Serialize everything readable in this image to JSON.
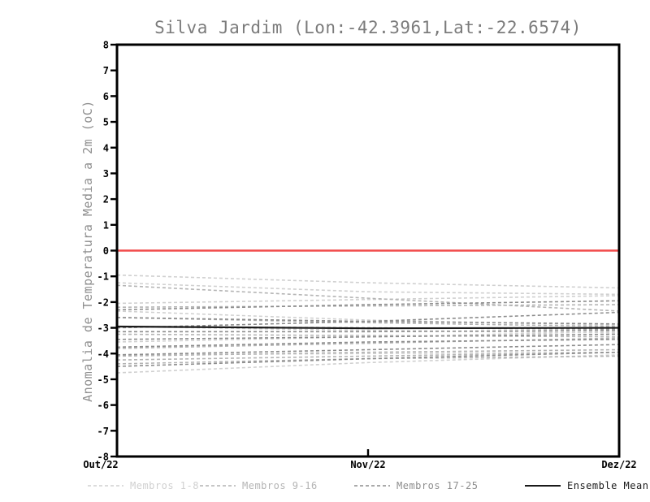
{
  "chart_data": {
    "type": "line",
    "title": "Silva Jardim (Lon:-42.3961,Lat:-22.6574)",
    "xlabel": "",
    "ylabel": "Anomalia de Temperatura Media a 2m (oC)",
    "x_categories": [
      "Out/22",
      "Nov/22",
      "Dez/22"
    ],
    "ylim": [
      -8,
      8
    ],
    "y_tick_step": 1,
    "grid": false,
    "legend_position": "bottom",
    "colors": {
      "axis": "#000000",
      "title": "#7b7b7b",
      "ylabel_text": "#8f8f8f",
      "zero_line": "#f24b4b"
    },
    "zero_line": {
      "value": 0,
      "color": "#f24b4b"
    },
    "groups": [
      {
        "name": "Membros 1-8",
        "color": "#d0d0d0",
        "dash": "4 3",
        "width": 1.6
      },
      {
        "name": "Membros 9-16",
        "color": "#b4b4b4",
        "dash": "4 3",
        "width": 1.6
      },
      {
        "name": "Membros 17-25",
        "color": "#8d8d8d",
        "dash": "4 3",
        "width": 1.6
      },
      {
        "name": "Ensemble Mean",
        "color": "#1a1a1a",
        "dash": null,
        "width": 2.2
      }
    ],
    "series": [
      {
        "name": "Membro 1",
        "group": 0,
        "values": [
          -0.95,
          -1.25,
          -1.45
        ]
      },
      {
        "name": "Membro 2",
        "group": 0,
        "values": [
          -1.25,
          -1.6,
          -1.7
        ]
      },
      {
        "name": "Membro 3",
        "group": 0,
        "values": [
          -2.05,
          -1.9,
          -1.75
        ]
      },
      {
        "name": "Membro 4",
        "group": 0,
        "values": [
          -2.35,
          -2.7,
          -2.9
        ]
      },
      {
        "name": "Membro 5",
        "group": 0,
        "values": [
          -2.95,
          -3.1,
          -3.2
        ]
      },
      {
        "name": "Membro 6",
        "group": 0,
        "values": [
          -3.55,
          -3.35,
          -3.15
        ]
      },
      {
        "name": "Membro 7",
        "group": 0,
        "values": [
          -4.05,
          -4.0,
          -3.95
        ]
      },
      {
        "name": "Membro 8",
        "group": 0,
        "values": [
          -4.75,
          -4.35,
          -4.05
        ]
      },
      {
        "name": "Membro 9",
        "group": 1,
        "values": [
          -1.35,
          -1.85,
          -2.35
        ]
      },
      {
        "name": "Membro 10",
        "group": 1,
        "values": [
          -2.2,
          -2.15,
          -2.1
        ]
      },
      {
        "name": "Membro 11",
        "group": 1,
        "values": [
          -2.6,
          -2.8,
          -2.95
        ]
      },
      {
        "name": "Membro 12",
        "group": 1,
        "values": [
          -3.25,
          -3.3,
          -3.35
        ]
      },
      {
        "name": "Membro 13",
        "group": 1,
        "values": [
          -3.8,
          -3.6,
          -3.4
        ]
      },
      {
        "name": "Membro 14",
        "group": 1,
        "values": [
          -4.1,
          -3.95,
          -3.85
        ]
      },
      {
        "name": "Membro 15",
        "group": 1,
        "values": [
          -4.25,
          -4.1,
          -3.95
        ]
      },
      {
        "name": "Membro 16",
        "group": 1,
        "values": [
          -4.4,
          -4.2,
          -4.1
        ]
      },
      {
        "name": "Membro 17",
        "group": 2,
        "values": [
          -2.3,
          -2.1,
          -1.95
        ]
      },
      {
        "name": "Membro 18",
        "group": 2,
        "values": [
          -3.0,
          -2.75,
          -2.4
        ]
      },
      {
        "name": "Membro 19",
        "group": 2,
        "values": [
          -2.6,
          -2.75,
          -2.85
        ]
      },
      {
        "name": "Membro 20",
        "group": 2,
        "values": [
          -2.95,
          -3.0,
          -3.05
        ]
      },
      {
        "name": "Membro 21",
        "group": 2,
        "values": [
          -3.15,
          -3.15,
          -3.1
        ]
      },
      {
        "name": "Membro 22",
        "group": 2,
        "values": [
          -3.45,
          -3.35,
          -3.25
        ]
      },
      {
        "name": "Membro 23",
        "group": 2,
        "values": [
          -3.75,
          -3.55,
          -3.45
        ]
      },
      {
        "name": "Membro 24",
        "group": 2,
        "values": [
          -4.05,
          -3.85,
          -3.65
        ]
      },
      {
        "name": "Membro 25",
        "group": 2,
        "values": [
          -4.5,
          -4.2,
          -3.95
        ]
      },
      {
        "name": "Ensemble Mean",
        "group": 3,
        "values": [
          -2.95,
          -3.02,
          -3.0
        ]
      }
    ]
  }
}
